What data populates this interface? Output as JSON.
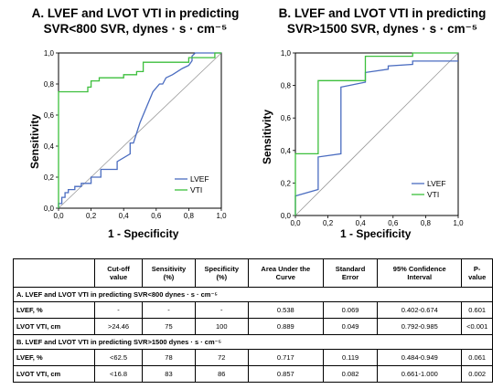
{
  "charts": {
    "A": {
      "title_line1": "A.  LVEF and LVOT VTI in predicting",
      "title_line2": "SVR<800 SVR, dynes · s · cm⁻⁵",
      "xlabel": "1 - Specificity",
      "ylabel": "Sensitivity",
      "xticks": [
        "0,0",
        "0,2",
        "0,4",
        "0,6",
        "0,8",
        "1,0"
      ],
      "yticks": [
        "0,0",
        "0,2",
        "0,4",
        "0,6",
        "0,8",
        "1,0"
      ],
      "legend": [
        "LVEF",
        "VTI"
      ]
    },
    "B": {
      "title_line1": "B.  LVEF and LVOT VTI in predicting",
      "title_line2": "SVR>1500 SVR, dynes · s · cm⁻⁵",
      "xlabel": "1 - Specificity",
      "ylabel": "Sensitivity",
      "xticks": [
        "0,0",
        "0,2",
        "0,4",
        "0,6",
        "0,8",
        "1,0"
      ],
      "yticks": [
        "0,0",
        "0,2",
        "0,4",
        "0,6",
        "0,8",
        "1,0"
      ],
      "legend": [
        "LVEF",
        "VTI"
      ]
    }
  },
  "colors": {
    "lvef": "#4a6cc0",
    "vti": "#3cbf3c",
    "diagonal": "#999999"
  },
  "chart_data": [
    {
      "type": "line",
      "xlim": [
        0,
        1
      ],
      "ylim": [
        0,
        1
      ],
      "grid": false,
      "legend_position": "bottom-right",
      "series": [
        {
          "name": "LVEF",
          "x": [
            0,
            0,
            0.02,
            0.02,
            0.04,
            0.04,
            0.06,
            0.06,
            0.1,
            0.1,
            0.14,
            0.14,
            0.2,
            0.2,
            0.26,
            0.26,
            0.32,
            0.36,
            0.36,
            0.44,
            0.44,
            0.46,
            0.5,
            0.54,
            0.58,
            0.62,
            0.64,
            0.66,
            0.7,
            0.76,
            0.8,
            0.82,
            0.82,
            0.84,
            0.88,
            1.0
          ],
          "y": [
            0,
            0.03,
            0.03,
            0.07,
            0.07,
            0.1,
            0.1,
            0.12,
            0.12,
            0.14,
            0.14,
            0.16,
            0.16,
            0.2,
            0.2,
            0.25,
            0.25,
            0.25,
            0.3,
            0.35,
            0.42,
            0.42,
            0.55,
            0.65,
            0.75,
            0.8,
            0.8,
            0.84,
            0.86,
            0.9,
            0.92,
            0.95,
            0.98,
            1.0,
            1.0,
            1.0
          ]
        },
        {
          "name": "VTI",
          "x": [
            0,
            0,
            0.18,
            0.18,
            0.2,
            0.2,
            0.25,
            0.25,
            0.4,
            0.4,
            0.48,
            0.48,
            0.52,
            0.52,
            0.8,
            0.8,
            0.96,
            0.96,
            1.0
          ],
          "y": [
            0,
            0.75,
            0.75,
            0.78,
            0.78,
            0.82,
            0.82,
            0.84,
            0.84,
            0.86,
            0.86,
            0.88,
            0.88,
            0.94,
            0.94,
            0.97,
            0.97,
            1.0,
            1.0
          ]
        }
      ]
    },
    {
      "type": "line",
      "xlim": [
        0,
        1
      ],
      "ylim": [
        0,
        1
      ],
      "grid": false,
      "legend_position": "bottom-right",
      "series": [
        {
          "name": "LVEF",
          "x": [
            0,
            0,
            0.14,
            0.14,
            0.28,
            0.28,
            0.33,
            0.43,
            0.43,
            0.57,
            0.57,
            0.72,
            0.72,
            1.0
          ],
          "y": [
            0,
            0.12,
            0.16,
            0.36,
            0.38,
            0.79,
            0.8,
            0.82,
            0.88,
            0.9,
            0.92,
            0.93,
            0.95,
            0.95
          ]
        },
        {
          "name": "VTI",
          "x": [
            0,
            0,
            0.14,
            0.14,
            0.43,
            0.43,
            0.72,
            0.72,
            1.0
          ],
          "y": [
            0,
            0.38,
            0.38,
            0.83,
            0.83,
            0.98,
            0.98,
            1.0,
            1.0
          ]
        }
      ]
    }
  ],
  "table": {
    "headers": [
      "",
      "Cut-off value",
      "Sensitivity (%)",
      "Specificity (%)",
      "Area Under the Curve",
      "Standard Error",
      "95% Confidence Interval",
      "P-value"
    ],
    "sectionA": "A.  LVEF and LVOT VTI in predicting SVR<800 dynes · s · cm⁻⁵",
    "sectionB": "B.  LVEF and LVOT VTI in predicting SVR>1500 dynes · s · cm⁻⁵",
    "rowsA": [
      [
        "LVEF, %",
        "-",
        "-",
        "-",
        "0.538",
        "0.069",
        "0.402-0.674",
        "0.601"
      ],
      [
        "LVOT VTI, cm",
        ">24.46",
        "75",
        "100",
        "0.889",
        "0.049",
        "0.792-0.985",
        "<0.001"
      ]
    ],
    "rowsB": [
      [
        "LVEF, %",
        "<62.5",
        "78",
        "72",
        "0.717",
        "0.119",
        "0.484-0.949",
        "0.061"
      ],
      [
        "LVOT VTI, cm",
        "<16.8",
        "83",
        "86",
        "0.857",
        "0.082",
        "0.661-1.000",
        "0.002"
      ]
    ]
  }
}
